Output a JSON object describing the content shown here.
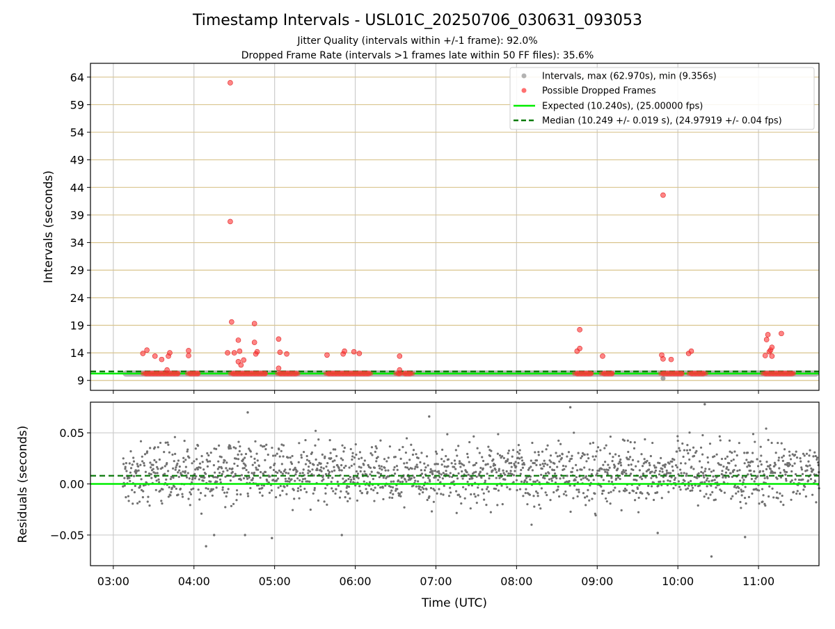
{
  "figure": {
    "title": "Timestamp Intervals - USL01C_20250706_030631_093053",
    "subtitle_1": "Jitter Quality (intervals within +/-1 frame): 92.0%",
    "subtitle_2": "Dropped Frame Rate (intervals >1 frames late within 50 FF files): 35.6%"
  },
  "chart_data": [
    {
      "type": "scatter",
      "panel": "top",
      "xlabel": "",
      "ylabel": "Intervals (seconds)",
      "x_range": [
        "02:43",
        "11:45"
      ],
      "ylim": [
        7.2,
        66.5
      ],
      "yticks": [
        9,
        14,
        19,
        24,
        29,
        34,
        39,
        44,
        49,
        54,
        59,
        64
      ],
      "xticks": [
        "03:00",
        "04:00",
        "05:00",
        "06:00",
        "07:00",
        "08:00",
        "09:00",
        "10:00",
        "11:00"
      ],
      "grid": true,
      "legend_position": "top-right",
      "legend": [
        "Intervals, max (62.970s), min (9.356s)",
        "Possible Dropped Frames",
        "Expected (10.240s), (25.00000 fps)",
        "Median (10.249 +/- 0.019 s), (24.97919 +/- 0.04 fps)"
      ],
      "expected_interval": 10.24,
      "median_interval": 10.249,
      "series": [
        {
          "name": "Intervals, max (62.970s), min (9.356s)",
          "color": "#808080",
          "note_data": "continuous intervals near 10.25 s from 03:07 to 11:45",
          "x_start": "03:07",
          "x_end": "11:45",
          "value": 10.25,
          "min_point": {
            "x": "09:49",
            "y": 9.356
          }
        },
        {
          "name": "Possible Dropped Frames",
          "color": "#ff3333",
          "clusters": [
            [
              "03:22",
              "03:50"
            ],
            [
              "03:55",
              "04:05"
            ],
            [
              "04:27",
              "04:55"
            ],
            [
              "05:02",
              "05:18"
            ],
            [
              "05:38",
              "06:12"
            ],
            [
              "06:30",
              "06:35"
            ],
            [
              "06:35",
              "06:43"
            ],
            [
              "08:43",
              "08:57"
            ],
            [
              "09:03",
              "09:13"
            ],
            [
              "09:47",
              "10:05"
            ],
            [
              "10:08",
              "10:21"
            ],
            [
              "11:03",
              "11:27"
            ]
          ],
          "outliers": [
            {
              "x": "03:22",
              "y": 13.9
            },
            {
              "x": "03:25",
              "y": 14.5
            },
            {
              "x": "03:31",
              "y": 13.4
            },
            {
              "x": "03:36",
              "y": 12.8
            },
            {
              "x": "03:41",
              "y": 13.4
            },
            {
              "x": "03:42",
              "y": 14.0
            },
            {
              "x": "03:40",
              "y": 10.9
            },
            {
              "x": "03:56",
              "y": 14.4
            },
            {
              "x": "03:56",
              "y": 13.5
            },
            {
              "x": "04:25",
              "y": 14.0
            },
            {
              "x": "04:27",
              "y": 62.97
            },
            {
              "x": "04:27",
              "y": 37.8
            },
            {
              "x": "04:28",
              "y": 19.6
            },
            {
              "x": "04:30",
              "y": 14.0
            },
            {
              "x": "04:33",
              "y": 16.3
            },
            {
              "x": "04:34",
              "y": 14.3
            },
            {
              "x": "04:33",
              "y": 12.4
            },
            {
              "x": "04:35",
              "y": 11.8
            },
            {
              "x": "04:37",
              "y": 12.7
            },
            {
              "x": "04:45",
              "y": 19.3
            },
            {
              "x": "04:45",
              "y": 15.9
            },
            {
              "x": "04:47",
              "y": 14.2
            },
            {
              "x": "04:46",
              "y": 13.8
            },
            {
              "x": "05:03",
              "y": 16.5
            },
            {
              "x": "05:04",
              "y": 14.1
            },
            {
              "x": "05:03",
              "y": 11.2
            },
            {
              "x": "05:09",
              "y": 13.8
            },
            {
              "x": "05:39",
              "y": 13.6
            },
            {
              "x": "05:51",
              "y": 13.8
            },
            {
              "x": "05:52",
              "y": 14.3
            },
            {
              "x": "05:59",
              "y": 14.2
            },
            {
              "x": "06:03",
              "y": 13.9
            },
            {
              "x": "06:33",
              "y": 13.4
            },
            {
              "x": "06:33",
              "y": 10.9
            },
            {
              "x": "08:45",
              "y": 14.3
            },
            {
              "x": "08:47",
              "y": 14.8
            },
            {
              "x": "08:47",
              "y": 18.2
            },
            {
              "x": "09:04",
              "y": 13.4
            },
            {
              "x": "09:48",
              "y": 13.6
            },
            {
              "x": "09:49",
              "y": 42.6
            },
            {
              "x": "09:49",
              "y": 12.9
            },
            {
              "x": "09:55",
              "y": 12.8
            },
            {
              "x": "10:08",
              "y": 13.9
            },
            {
              "x": "10:10",
              "y": 14.3
            },
            {
              "x": "11:05",
              "y": 13.5
            },
            {
              "x": "11:06",
              "y": 16.4
            },
            {
              "x": "11:07",
              "y": 17.3
            },
            {
              "x": "11:08",
              "y": 14.2
            },
            {
              "x": "11:09",
              "y": 14.5
            },
            {
              "x": "11:10",
              "y": 15.0
            },
            {
              "x": "11:10",
              "y": 13.4
            },
            {
              "x": "11:17",
              "y": 17.5
            }
          ]
        }
      ]
    },
    {
      "type": "scatter",
      "panel": "bottom",
      "xlabel": "Time (UTC)",
      "ylabel": "Residuals (seconds)",
      "x_range": [
        "02:43",
        "11:45"
      ],
      "ylim": [
        -0.08,
        0.08
      ],
      "yticks": [
        0.05,
        0.0,
        -0.05
      ],
      "ytick_labels": [
        "0.05",
        "0.00",
        "−0.05"
      ],
      "xticks": [
        "03:00",
        "04:00",
        "05:00",
        "06:00",
        "07:00",
        "08:00",
        "09:00",
        "10:00",
        "11:00"
      ],
      "grid": true,
      "expected_residual": 0.0,
      "median_residual": 0.008,
      "series": [
        {
          "name": "Residuals",
          "color": "#707070",
          "x_start": "03:07",
          "x_end": "11:45",
          "distribution": "bands at ~0.00, ~0.01, ~0.02 s with spread +/-0.03 s and outliers to +/-0.07 s",
          "outliers": [
            {
              "x": "04:09",
              "y": -0.061
            },
            {
              "x": "04:15",
              "y": -0.05
            },
            {
              "x": "04:38",
              "y": -0.05
            },
            {
              "x": "04:40",
              "y": 0.07
            },
            {
              "x": "04:58",
              "y": -0.053
            },
            {
              "x": "05:50",
              "y": -0.05
            },
            {
              "x": "06:55",
              "y": 0.066
            },
            {
              "x": "08:40",
              "y": 0.075
            },
            {
              "x": "09:45",
              "y": -0.048
            },
            {
              "x": "10:20",
              "y": 0.078
            },
            {
              "x": "10:25",
              "y": -0.071
            },
            {
              "x": "10:50",
              "y": -0.052
            }
          ]
        }
      ]
    }
  ]
}
